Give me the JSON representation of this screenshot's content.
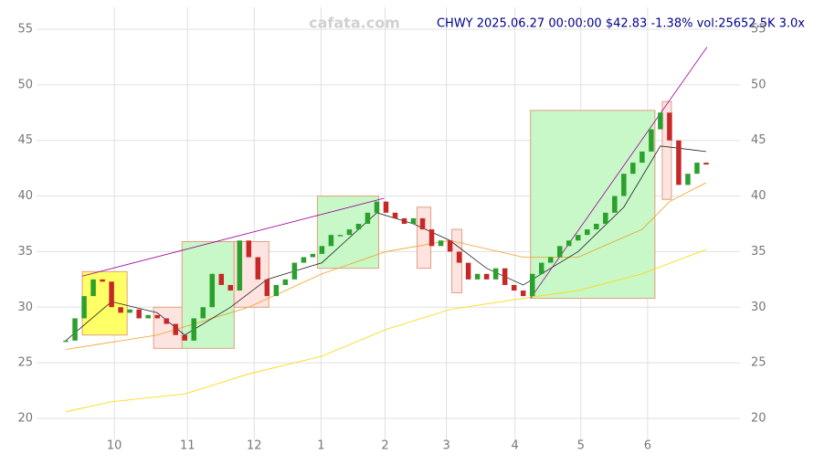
{
  "chart_data": {
    "type": "candlestick",
    "title": "CHWY 2025.06.27 00:00:00 $42.83 -1.38% vol:25652.5K 3.0x",
    "watermark": "cafata.com",
    "xlim": [
      -3.2,
      73.7
    ],
    "ylim": [
      20,
      55
    ],
    "yticks": [
      20,
      25,
      30,
      35,
      40,
      45,
      50,
      55
    ],
    "xticks": [
      {
        "value": 5.3,
        "label": "10"
      },
      {
        "value": 13.3,
        "label": "11"
      },
      {
        "value": 20.6,
        "label": "12"
      },
      {
        "value": 27.9,
        "label": "1"
      },
      {
        "value": 34.9,
        "label": "2"
      },
      {
        "value": 41.6,
        "label": "3"
      },
      {
        "value": 49.1,
        "label": "4"
      },
      {
        "value": 56.3,
        "label": "5"
      },
      {
        "value": 63.6,
        "label": "6"
      }
    ],
    "grid": true,
    "up_color": "#2ca02c",
    "down_color": "#c62828",
    "closes": [
      27,
      29,
      31,
      32.5,
      32.3,
      30,
      29.5,
      29.8,
      29,
      29.3,
      29,
      28.5,
      27.5,
      27,
      29,
      30,
      33,
      32,
      31.5,
      36,
      34.5,
      32.5,
      31,
      32,
      32.5,
      34,
      34.5,
      34.8,
      35.5,
      36.5,
      36.5,
      37,
      37.5,
      38.5,
      39.5,
      38.5,
      38,
      37.5,
      38,
      37,
      35.5,
      36,
      35,
      34,
      32.5,
      33,
      32.5,
      33.5,
      32,
      31.5,
      31,
      33,
      34,
      34.5,
      35.5,
      36,
      36.5,
      37,
      37.5,
      38.5,
      40,
      42,
      43,
      44,
      46,
      47.5,
      45,
      41,
      42,
      43,
      42.83
    ],
    "regions": [
      {
        "x": [
          1.8,
          6.7
        ],
        "y": [
          27.5,
          33.2
        ],
        "color": "#ffff66"
      },
      {
        "x": [
          9.6,
          12.8
        ],
        "y": [
          26.3,
          30
        ],
        "color": "#fde4e1"
      },
      {
        "x": [
          12.7,
          18.4
        ],
        "y": [
          26.3,
          35.9
        ],
        "color": "#c8f7c8"
      },
      {
        "x": [
          18.4,
          22.2
        ],
        "y": [
          30,
          35.9
        ],
        "color": "#fde4e1"
      },
      {
        "x": [
          27.5,
          34.2
        ],
        "y": [
          33.5,
          40
        ],
        "color": "#c8f7c8"
      },
      {
        "x": [
          38.4,
          39.9
        ],
        "y": [
          33.5,
          39
        ],
        "color": "#fde4e1"
      },
      {
        "x": [
          42.2,
          43.3
        ],
        "y": [
          31.3,
          37
        ],
        "color": "#fde4e1"
      },
      {
        "x": [
          50.8,
          64.4
        ],
        "y": [
          30.8,
          47.7
        ],
        "color": "#c8f7c8"
      },
      {
        "x": [
          65.2,
          66.2
        ],
        "y": [
          39.7,
          48.5
        ],
        "color": "#fde4e1"
      }
    ],
    "series": [
      {
        "color": "#ffd700",
        "x": [
          0,
          5,
          13,
          20,
          28,
          35,
          42,
          50,
          56,
          63,
          70
        ],
        "values": [
          20.6,
          21.5,
          22.2,
          24,
          25.6,
          28,
          29.8,
          30.8,
          31.5,
          33,
          35.2
        ]
      },
      {
        "color": "#f0a020",
        "x": [
          0,
          10,
          20,
          28,
          35,
          42,
          50,
          56,
          63,
          66,
          70
        ],
        "values": [
          26.2,
          27.5,
          30,
          33,
          35,
          36,
          34.5,
          34.5,
          37,
          39.5,
          41.2
        ]
      },
      {
        "color": "#222222",
        "x": [
          0,
          5,
          10,
          13,
          18,
          22,
          28,
          34,
          38,
          42,
          46,
          50,
          56,
          61,
          65,
          70
        ],
        "values": [
          27,
          30.5,
          29.5,
          27.5,
          30,
          32.5,
          34,
          38.5,
          37.5,
          36,
          33.5,
          32,
          35,
          39,
          44.5,
          44
        ]
      },
      {
        "color": "#990099",
        "x": [
          1.8,
          34.8
        ],
        "values": [
          32.8,
          39.8
        ]
      },
      {
        "color": "#990099",
        "x": [
          50.8,
          70.1
        ],
        "values": [
          30.8,
          53.4
        ]
      }
    ]
  }
}
